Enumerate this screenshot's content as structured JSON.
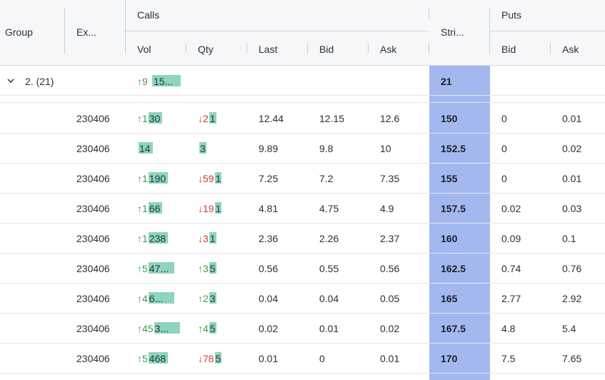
{
  "header": {
    "group": "Group",
    "expiry": "Ex...",
    "calls": "Calls",
    "strike": "Stri...",
    "puts": "Puts",
    "calls_cols": {
      "vol": "Vol",
      "qty": "Qty",
      "last": "Last",
      "bid": "Bid",
      "ask": "Ask"
    },
    "puts_cols": {
      "bid": "Bid",
      "ask": "Ask"
    }
  },
  "group_row": {
    "label": "2. (21)",
    "vol_arrow": "↑9",
    "vol_bar": "15...",
    "strike": "21"
  },
  "rows": [
    {
      "expiry": "230406",
      "vol_arrow": "↑1",
      "vol_dir": "up",
      "vol_bar": "30",
      "qty_arrow": "↓2",
      "qty_dir": "down",
      "qty_bar": "1",
      "last": "12.44",
      "bid": "12.15",
      "ask": "12.6",
      "strike": "150",
      "put_bid": "0",
      "put_ask": "0.01"
    },
    {
      "expiry": "230406",
      "vol_arrow": "",
      "vol_dir": "up",
      "vol_bar": "14",
      "qty_arrow": "",
      "qty_dir": "up",
      "qty_bar": "3",
      "last": "9.89",
      "bid": "9.8",
      "ask": "10",
      "strike": "152.5",
      "put_bid": "0",
      "put_ask": "0.02"
    },
    {
      "expiry": "230406",
      "vol_arrow": "↑1",
      "vol_dir": "up",
      "vol_bar": "190",
      "qty_arrow": "↓59",
      "qty_dir": "down",
      "qty_bar": "1",
      "last": "7.25",
      "bid": "7.2",
      "ask": "7.35",
      "strike": "155",
      "put_bid": "0",
      "put_ask": "0.01"
    },
    {
      "expiry": "230406",
      "vol_arrow": "↑1",
      "vol_dir": "up",
      "vol_bar": "66",
      "qty_arrow": "↓19",
      "qty_dir": "down",
      "qty_bar": "1",
      "last": "4.81",
      "bid": "4.75",
      "ask": "4.9",
      "strike": "157.5",
      "put_bid": "0.02",
      "put_ask": "0.03"
    },
    {
      "expiry": "230406",
      "vol_arrow": "↑1",
      "vol_dir": "up",
      "vol_bar": "238",
      "qty_arrow": "↓3",
      "qty_dir": "down",
      "qty_bar": "1",
      "last": "2.36",
      "bid": "2.26",
      "ask": "2.37",
      "strike": "160",
      "put_bid": "0.09",
      "put_ask": "0.1"
    },
    {
      "expiry": "230406",
      "vol_arrow": "↑5",
      "vol_dir": "up",
      "vol_bar": "47...",
      "qty_arrow": "↑3",
      "qty_dir": "up",
      "qty_bar": "5",
      "last": "0.56",
      "bid": "0.55",
      "ask": "0.56",
      "strike": "162.5",
      "put_bid": "0.74",
      "put_ask": "0.76"
    },
    {
      "expiry": "230406",
      "vol_arrow": "↑4",
      "vol_dir": "up",
      "vol_bar": "6...",
      "qty_arrow": "↑2",
      "qty_dir": "up",
      "qty_bar": "3",
      "last": "0.04",
      "bid": "0.04",
      "ask": "0.05",
      "strike": "165",
      "put_bid": "2.77",
      "put_ask": "2.92"
    },
    {
      "expiry": "230406",
      "vol_arrow": "↑45",
      "vol_dir": "up",
      "vol_bar": "3...",
      "qty_arrow": "↑4",
      "qty_dir": "up",
      "qty_bar": "5",
      "last": "0.02",
      "bid": "0.01",
      "ask": "0.02",
      "strike": "167.5",
      "put_bid": "4.8",
      "put_ask": "5.4"
    },
    {
      "expiry": "230406",
      "vol_arrow": "↑5",
      "vol_dir": "up",
      "vol_bar": "468",
      "qty_arrow": "↓78",
      "qty_dir": "down",
      "qty_bar": "5",
      "last": "0.01",
      "bid": "0",
      "ask": "0.01",
      "strike": "170",
      "put_bid": "7.5",
      "put_ask": "7.65"
    }
  ],
  "colors": {
    "strike_bg": "#a4b8f0",
    "bar_bg": "#8fd3c1",
    "up": "#3f9a4b",
    "down": "#d23b35"
  }
}
